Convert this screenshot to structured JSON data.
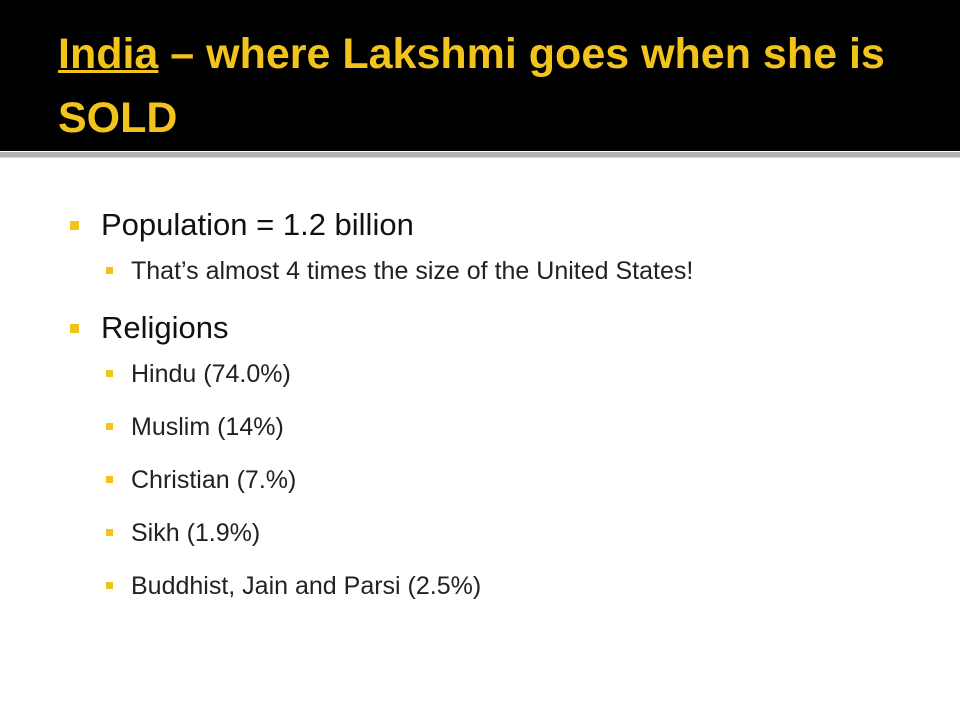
{
  "header": {
    "title_link": "India",
    "title_rest": "– where Lakshmi goes when she is SOLD"
  },
  "bullets": [
    {
      "text": "Population = 1.2 billion",
      "subitems": [
        "That’s almost 4 times the size of the United States!"
      ]
    },
    {
      "text": "Religions",
      "subitems": [
        "Hindu (74.0%)",
        "Muslim (14%)",
        "Christian (7.%)",
        "Sikh (1.9%)",
        "Buddhist, Jain and Parsi (2.5%)"
      ]
    }
  ]
}
